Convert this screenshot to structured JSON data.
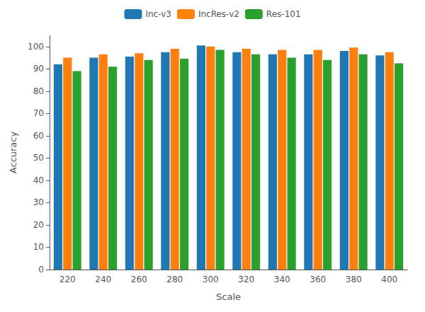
{
  "chart_data": {
    "type": "bar",
    "xlabel": "Scale",
    "ylabel": "Accuracy",
    "categories": [
      "220",
      "240",
      "260",
      "280",
      "300",
      "320",
      "340",
      "360",
      "380",
      "400"
    ],
    "series": [
      {
        "name": "Inc-v3",
        "color": "#1f77b4",
        "values": [
          92,
          95,
          95.5,
          97.5,
          100.5,
          97.5,
          96.5,
          96.5,
          98,
          96
        ]
      },
      {
        "name": "IncRes-v2",
        "color": "#ff7f0e",
        "values": [
          95,
          96.5,
          97,
          99,
          100,
          99,
          98.5,
          98.5,
          99.5,
          97.5
        ]
      },
      {
        "name": "Res-101",
        "color": "#2ca02c",
        "values": [
          89,
          91,
          94,
          94.5,
          98.5,
          96.5,
          95,
          94,
          96.5,
          92.5
        ]
      }
    ],
    "ylim": [
      0,
      105
    ],
    "yticks": [
      0,
      10,
      20,
      30,
      40,
      50,
      60,
      70,
      80,
      90,
      100
    ],
    "legend": "top",
    "grid": false
  }
}
